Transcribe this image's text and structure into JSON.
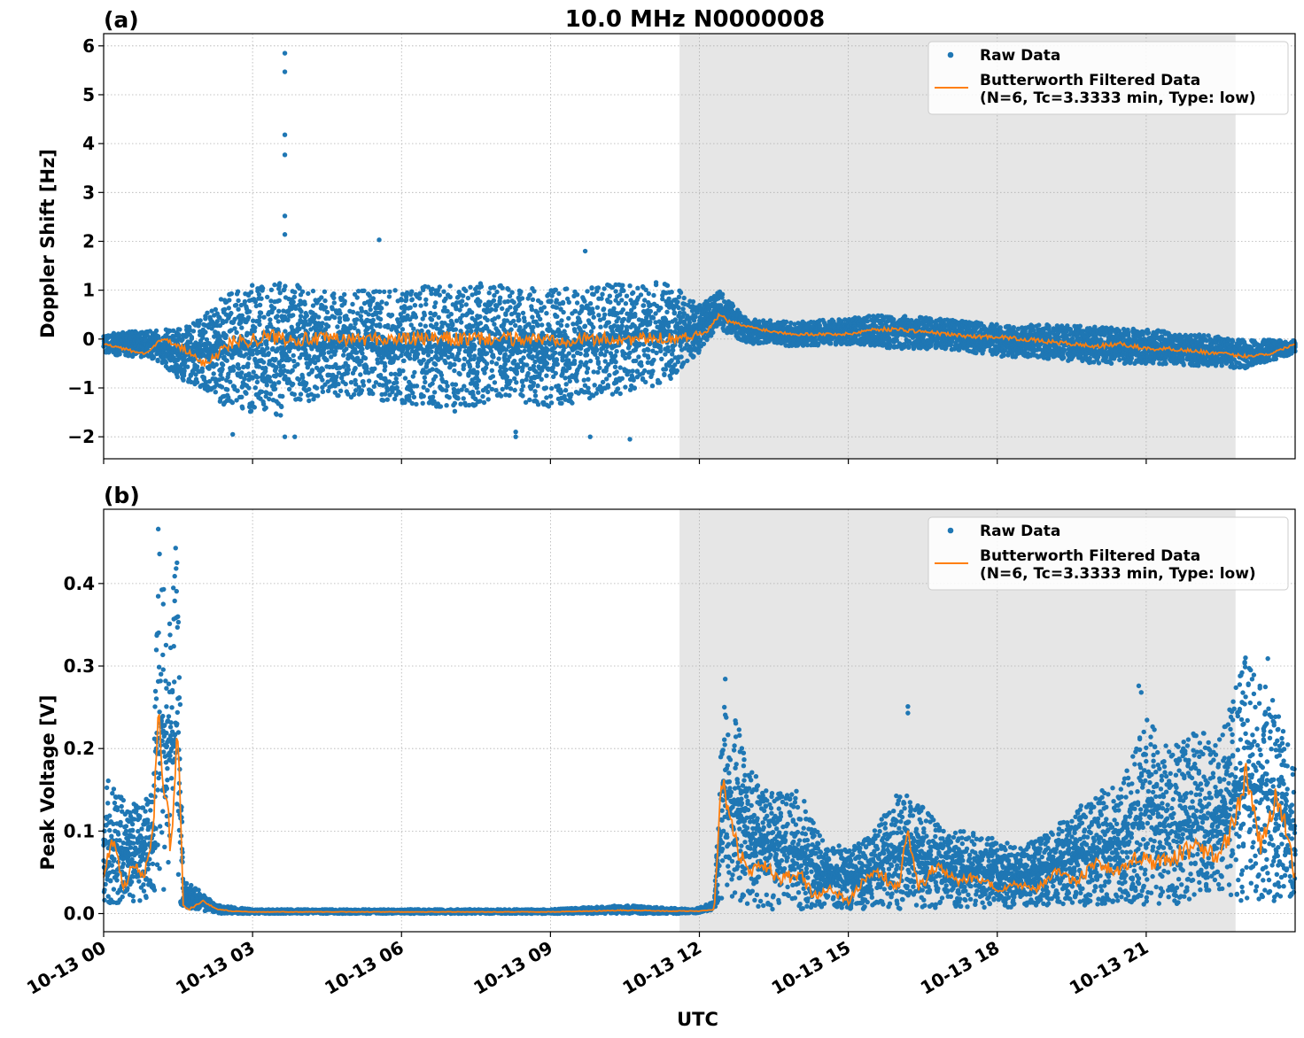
{
  "figure": {
    "title": "10.0 MHz N0000008",
    "xlabel": "UTC"
  },
  "colors": {
    "raw": "#1f77b4",
    "filtered": "#ff7f0e",
    "night_shade": "#e6e6e6",
    "grid": "#b0b0b0"
  },
  "chart_data": [
    {
      "type": "scatter",
      "panel_label": "(a)",
      "ylabel": "Doppler Shift [Hz]",
      "xlim": [
        "2023-10-13T00:00",
        "2023-10-14T00:00"
      ],
      "ylim": [
        -2.45,
        6.25
      ],
      "yticks": [
        -2,
        -1,
        0,
        1,
        2,
        3,
        4,
        5,
        6
      ],
      "ytick_labels": [
        "−2",
        "−1",
        "0",
        "1",
        "2",
        "3",
        "4",
        "5",
        "6"
      ],
      "shaded_region": [
        "2023-10-13T11:36",
        "2023-10-13T22:48"
      ],
      "grid": true,
      "legend": {
        "position": "top-right",
        "entries": [
          "Raw Data",
          "Butterworth Filtered Data",
          "(N=6, Tc=3.3333 min, Type: low)"
        ]
      },
      "series": [
        {
          "name": "Raw Data",
          "kind": "points",
          "x_hours": [
            0,
            1,
            1.5,
            2,
            2.5,
            3,
            3.5,
            4,
            5,
            6,
            7,
            8,
            9,
            10,
            11,
            11.5,
            12.0,
            12.4,
            13,
            14,
            15,
            16,
            17,
            18,
            19,
            20,
            21,
            22,
            23,
            24
          ],
          "y_low": [
            -0.3,
            -0.4,
            -0.8,
            -1.0,
            -1.4,
            -1.5,
            -1.6,
            -1.3,
            -1.2,
            -1.3,
            -1.5,
            -1.2,
            -1.4,
            -1.2,
            -1.0,
            -0.8,
            -0.3,
            0.2,
            -0.1,
            -0.15,
            -0.1,
            -0.2,
            -0.2,
            -0.35,
            -0.4,
            -0.5,
            -0.5,
            -0.55,
            -0.6,
            -0.3
          ],
          "y_high": [
            0.1,
            0.2,
            0.2,
            0.5,
            1.0,
            1.1,
            1.2,
            1.1,
            1.0,
            1.0,
            1.2,
            1.1,
            1.0,
            1.1,
            1.2,
            1.1,
            0.7,
            1.0,
            0.4,
            0.35,
            0.45,
            0.5,
            0.4,
            0.3,
            0.3,
            0.25,
            0.2,
            0.1,
            0.0,
            0.0
          ],
          "outliers": [
            [
              3.65,
              5.85
            ],
            [
              3.65,
              5.47
            ],
            [
              3.65,
              4.18
            ],
            [
              3.65,
              3.77
            ],
            [
              3.65,
              2.52
            ],
            [
              3.65,
              2.14
            ],
            [
              5.55,
              2.03
            ],
            [
              3.65,
              -2.0
            ],
            [
              3.85,
              -2.0
            ],
            [
              8.3,
              -2.0
            ],
            [
              8.3,
              -1.9
            ],
            [
              10.6,
              -2.05
            ],
            [
              9.8,
              -2.0
            ],
            [
              9.7,
              1.8
            ],
            [
              2.6,
              -1.95
            ]
          ]
        },
        {
          "name": "Butterworth Filtered Data",
          "kind": "line",
          "x_hours": [
            0,
            0.4,
            0.8,
            1.2,
            1.6,
            2.0,
            2.3,
            2.6,
            3.0,
            3.5,
            4,
            5,
            6,
            7,
            8,
            9,
            10,
            11,
            11.8,
            12.2,
            12.4,
            12.6,
            13,
            13.5,
            14,
            15,
            15.5,
            16,
            16.5,
            17,
            17.5,
            18,
            18.5,
            19,
            19.5,
            20,
            20.5,
            21,
            21.5,
            22,
            22.5,
            23,
            23.5,
            24
          ],
          "y": [
            -0.1,
            -0.2,
            -0.3,
            0.0,
            -0.2,
            -0.5,
            -0.3,
            -0.05,
            0.0,
            0.05,
            0.0,
            0.0,
            0.0,
            0.0,
            0.0,
            0.0,
            0.0,
            0.0,
            0.05,
            0.2,
            0.5,
            0.35,
            0.25,
            0.15,
            0.1,
            0.1,
            0.2,
            0.2,
            0.15,
            0.1,
            0.05,
            0.05,
            0.0,
            -0.05,
            -0.1,
            -0.15,
            -0.1,
            -0.2,
            -0.2,
            -0.25,
            -0.3,
            -0.35,
            -0.3,
            -0.1
          ]
        }
      ]
    },
    {
      "type": "scatter",
      "panel_label": "(b)",
      "ylabel": "Peak Voltage [V]",
      "xlim": [
        "2023-10-13T00:00",
        "2023-10-14T00:00"
      ],
      "ylim": [
        -0.022,
        0.49
      ],
      "yticks": [
        0.0,
        0.1,
        0.2,
        0.3,
        0.4
      ],
      "ytick_labels": [
        "0.0",
        "0.1",
        "0.2",
        "0.3",
        "0.4"
      ],
      "xticks_hours": [
        0,
        3,
        6,
        9,
        12,
        15,
        18,
        21
      ],
      "xtick_labels": [
        "10-13 00",
        "10-13 03",
        "10-13 06",
        "10-13 09",
        "10-13 12",
        "10-13 15",
        "10-13 18",
        "10-13 21"
      ],
      "shaded_region": [
        "2023-10-13T11:36",
        "2023-10-13T22:48"
      ],
      "grid": true,
      "legend": {
        "position": "top-right",
        "entries": [
          "Raw Data",
          "Butterworth Filtered Data",
          "(N=6, Tc=3.3333 min, Type: low)"
        ]
      },
      "series": [
        {
          "name": "Raw Data",
          "kind": "points",
          "x_hours": [
            0,
            0.5,
            1.0,
            1.1,
            1.3,
            1.5,
            1.6,
            1.9,
            2.3,
            3,
            6,
            9,
            10.5,
            11.9,
            12.3,
            12.5,
            13,
            13.5,
            14,
            14.5,
            15,
            15.5,
            16,
            16.5,
            17,
            17.5,
            18,
            18.5,
            19,
            19.5,
            20,
            20.5,
            21,
            21.5,
            22,
            22.5,
            23,
            23.5,
            24
          ],
          "y_low": [
            0.01,
            0.01,
            0.02,
            0.02,
            0.03,
            0.02,
            0.005,
            0.005,
            0.0,
            0.0,
            0.0,
            0.0,
            0.0,
            0.0,
            0.005,
            0.02,
            0.01,
            0.005,
            0.005,
            0.005,
            0.005,
            0.005,
            0.005,
            0.005,
            0.005,
            0.005,
            0.005,
            0.01,
            0.01,
            0.01,
            0.01,
            0.01,
            0.01,
            0.01,
            0.01,
            0.015,
            0.015,
            0.01,
            0.02
          ],
          "y_high": [
            0.17,
            0.13,
            0.15,
            0.47,
            0.35,
            0.44,
            0.04,
            0.03,
            0.01,
            0.005,
            0.005,
            0.005,
            0.01,
            0.005,
            0.015,
            0.29,
            0.18,
            0.15,
            0.15,
            0.09,
            0.08,
            0.1,
            0.15,
            0.13,
            0.1,
            0.1,
            0.09,
            0.08,
            0.1,
            0.12,
            0.15,
            0.16,
            0.24,
            0.2,
            0.22,
            0.22,
            0.31,
            0.27,
            0.18
          ],
          "outliers": [
            [
              1.1,
              0.466
            ],
            [
              1.45,
              0.443
            ],
            [
              16.2,
              0.251
            ],
            [
              16.2,
              0.243
            ],
            [
              20.85,
              0.276
            ],
            [
              20.9,
              0.268
            ],
            [
              23.0,
              0.31
            ],
            [
              23.45,
              0.309
            ]
          ]
        },
        {
          "name": "Butterworth Filtered Data",
          "kind": "line",
          "x_hours": [
            0,
            0.2,
            0.4,
            0.6,
            0.8,
            1.0,
            1.1,
            1.2,
            1.35,
            1.5,
            1.6,
            1.7,
            2.0,
            2.3,
            2.6,
            3,
            6,
            9,
            10.5,
            11.5,
            12.0,
            12.3,
            12.45,
            12.6,
            12.8,
            13.0,
            13.3,
            13.6,
            14.0,
            14.3,
            14.6,
            15.0,
            15.3,
            15.6,
            16.0,
            16.2,
            16.4,
            16.8,
            17.2,
            17.6,
            18.0,
            18.4,
            18.8,
            19.2,
            19.6,
            20.0,
            20.4,
            20.8,
            21.2,
            21.6,
            22.0,
            22.4,
            22.8,
            23.0,
            23.3,
            23.6,
            23.85,
            24
          ],
          "y": [
            0.05,
            0.09,
            0.03,
            0.06,
            0.04,
            0.1,
            0.25,
            0.17,
            0.08,
            0.22,
            0.01,
            0.005,
            0.015,
            0.005,
            0.003,
            0.002,
            0.002,
            0.002,
            0.004,
            0.003,
            0.003,
            0.005,
            0.17,
            0.12,
            0.07,
            0.05,
            0.06,
            0.04,
            0.05,
            0.02,
            0.03,
            0.015,
            0.04,
            0.05,
            0.03,
            0.1,
            0.03,
            0.06,
            0.04,
            0.045,
            0.03,
            0.035,
            0.03,
            0.05,
            0.04,
            0.06,
            0.05,
            0.07,
            0.06,
            0.07,
            0.08,
            0.07,
            0.11,
            0.17,
            0.08,
            0.14,
            0.1,
            0.04
          ]
        }
      ]
    }
  ]
}
